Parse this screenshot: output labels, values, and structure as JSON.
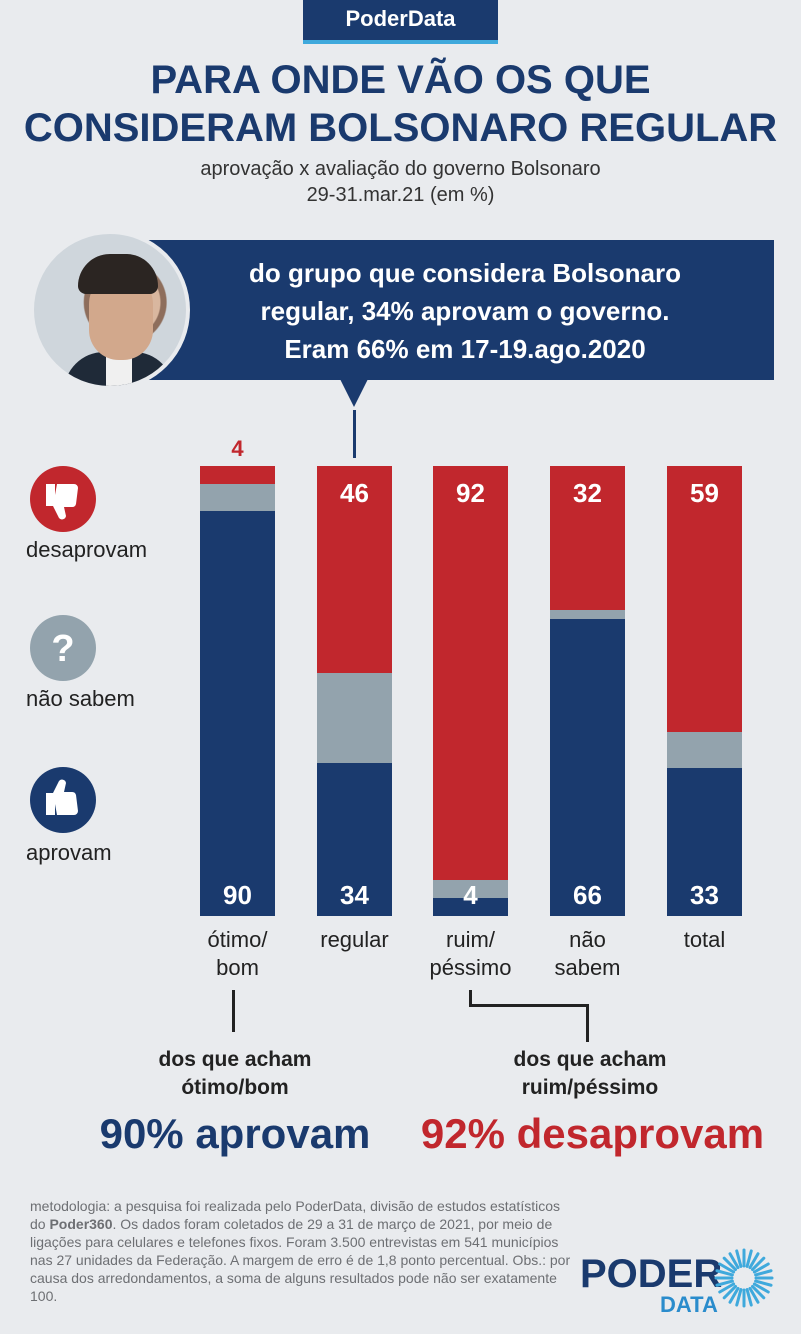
{
  "header": {
    "tag": "PoderData",
    "title_line1": "PARA ONDE VÃO OS QUE",
    "title_line2": "CONSIDERAM BOLSONARO REGULAR",
    "subtitle_line1": "aprovação x avaliação do governo Bolsonaro",
    "subtitle_line2": "29-31.mar.21 (em %)"
  },
  "callout": {
    "line1": "do grupo que considera Bolsonaro",
    "line2": "regular, 34% aprovam o governo.",
    "line3": "Eram 66%  em 17-19.ago.2020"
  },
  "legend": {
    "disapprove": "desaprovam",
    "unknown": "não sabem",
    "approve": "aprovam"
  },
  "colors": {
    "approve": "#1a3a6e",
    "unknown": "#93a3ad",
    "disapprove": "#c1272d"
  },
  "chart_data": {
    "type": "bar",
    "stacked": true,
    "categories": [
      "ótimo/\nbom",
      "regular",
      "ruim/\npéssimo",
      "não\nsabem",
      "total"
    ],
    "series": [
      {
        "name": "aprovam",
        "values": [
          90,
          34,
          4,
          66,
          33
        ]
      },
      {
        "name": "não sabem",
        "values": [
          6,
          20,
          4,
          2,
          8
        ]
      },
      {
        "name": "desaprovam",
        "values": [
          4,
          46,
          92,
          32,
          59
        ]
      }
    ],
    "data_labels": {
      "aprovam": [
        "90",
        "34",
        "4",
        "66",
        "33"
      ],
      "desaprovam": [
        "4",
        "46",
        "92",
        "32",
        "59"
      ]
    },
    "ylim": [
      0,
      100
    ]
  },
  "notes": {
    "left_head_line1": "dos que acham",
    "left_head_line2": "ótimo/bom",
    "left_big": "90% aprovam",
    "right_head_line1": "dos que acham",
    "right_head_line2": "ruim/péssimo",
    "right_big": "92% desaprovam"
  },
  "methodology_pre": "metodologia: a pesquisa foi realizada pelo PoderData, divisão de estudos estatísticos do ",
  "methodology_brand": "Poder360",
  "methodology_post": ". Os dados foram coletados de 29 a 31 de março de 2021, por meio de ligações para celulares e telefones fixos. Foram 3.500 entrevistas em 541 municípios nas 27 unidades da Federação. A margem de erro é de 1,8 ponto percentual. Obs.: por causa dos arredondamentos, a soma de alguns resultados pode não ser exatamente 100.",
  "logo": {
    "word": "PODER",
    "sub": "DATA"
  }
}
